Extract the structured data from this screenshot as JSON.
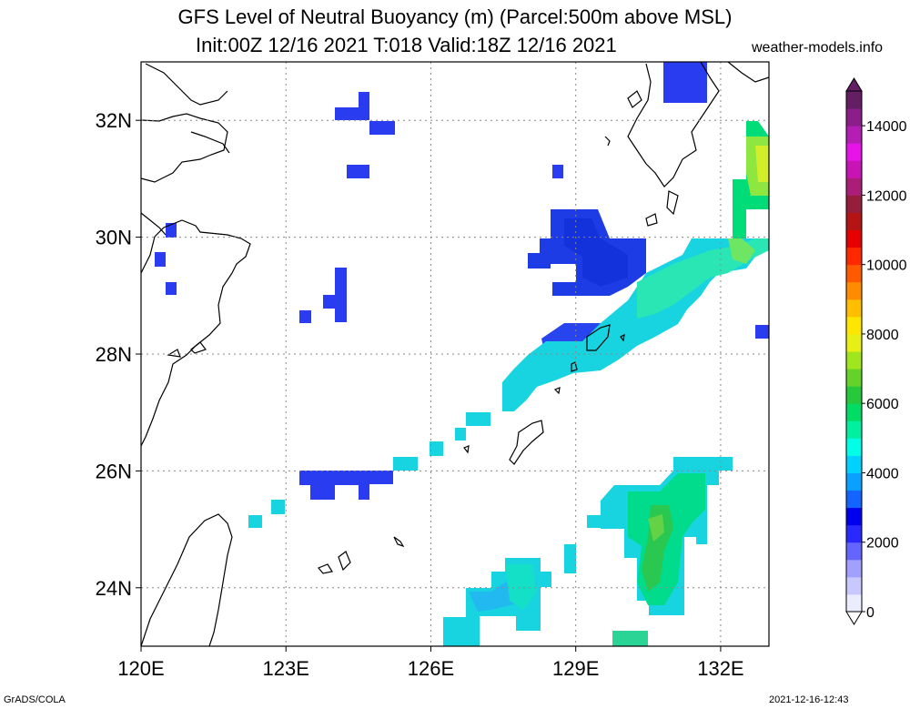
{
  "header": {
    "title_line1": "GFS Level of Neutral Buoyancy (m) (Parcel:500m above MSL)",
    "title_line2": "Init:00Z 12/16 2021 T:018 Valid:18Z 12/16 2021",
    "site": "weather-models.info"
  },
  "footer": {
    "left": "GrADS/COLA",
    "right": "2021-12-16-12:43"
  },
  "map": {
    "lon_range": [
      120,
      133
    ],
    "lat_range": [
      23,
      33
    ],
    "lat_labels": [
      {
        "lat": 32,
        "text": "32N"
      },
      {
        "lat": 30,
        "text": "30N"
      },
      {
        "lat": 28,
        "text": "28N"
      },
      {
        "lat": 26,
        "text": "26N"
      },
      {
        "lat": 24,
        "text": "24N"
      }
    ],
    "lon_labels": [
      {
        "lon": 120,
        "text": "120E"
      },
      {
        "lon": 123,
        "text": "123E"
      },
      {
        "lon": 126,
        "text": "126E"
      },
      {
        "lon": 129,
        "text": "129E"
      },
      {
        "lon": 132,
        "text": "132E"
      }
    ],
    "grid_lats": [
      32,
      30,
      28,
      26,
      24
    ],
    "grid_lons": [
      123,
      126,
      129,
      132
    ]
  },
  "colorbar": {
    "labels": [
      "14000",
      "12000",
      "10000",
      "8000",
      "6000",
      "4000",
      "2000",
      "0"
    ],
    "min": 0,
    "max": 15000,
    "colors": [
      "#ececff",
      "#c8c8ff",
      "#a0a0ff",
      "#6464ff",
      "#2828ff",
      "#0000ee",
      "#1464ff",
      "#0aa0ff",
      "#00d2ff",
      "#00ffe6",
      "#00f0a0",
      "#00dc64",
      "#28c83c",
      "#64d228",
      "#a0e61e",
      "#e6f014",
      "#ffe600",
      "#ffbe00",
      "#ff8c00",
      "#ff5a00",
      "#ff2800",
      "#e60000",
      "#b41414",
      "#961e3c",
      "#aa1e78",
      "#c814b4",
      "#e614e6",
      "#b41eb4",
      "#8c1e8c",
      "#641e64"
    ]
  }
}
